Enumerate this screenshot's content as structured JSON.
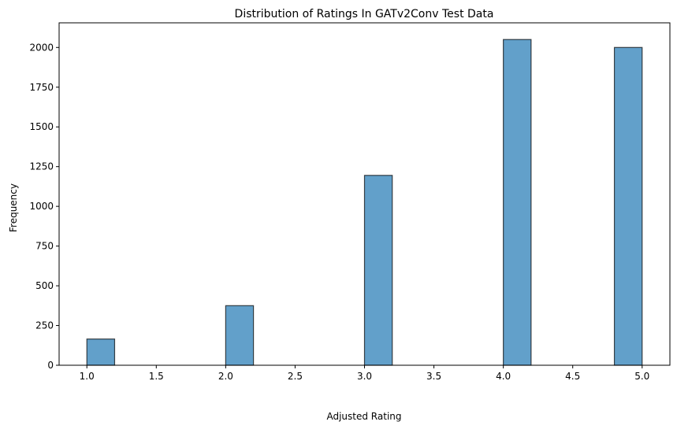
{
  "chart_data": {
    "type": "bar",
    "title": "Distribution of Ratings In GATv2Conv Test Data",
    "xlabel": "Adjusted Rating",
    "ylabel": "Frequency",
    "xlim": [
      0.8,
      5.2
    ],
    "ylim": [
      0,
      2155
    ],
    "bin_width": 0.2,
    "bins": [
      {
        "start": 1.0,
        "end": 1.2,
        "value": 165
      },
      {
        "start": 2.0,
        "end": 2.2,
        "value": 375
      },
      {
        "start": 3.0,
        "end": 3.2,
        "value": 1195
      },
      {
        "start": 4.0,
        "end": 4.2,
        "value": 2050
      },
      {
        "start": 4.8,
        "end": 5.0,
        "value": 2000
      }
    ],
    "xticks": [
      1.0,
      1.5,
      2.0,
      2.5,
      3.0,
      3.5,
      4.0,
      4.5,
      5.0
    ],
    "xtick_labels": [
      "1.0",
      "1.5",
      "2.0",
      "2.5",
      "3.0",
      "3.5",
      "4.0",
      "4.5",
      "5.0"
    ],
    "yticks": [
      0,
      250,
      500,
      750,
      1000,
      1250,
      1500,
      1750,
      2000
    ],
    "ytick_labels": [
      "0",
      "250",
      "500",
      "750",
      "1000",
      "1250",
      "1500",
      "1750",
      "2000"
    ],
    "grid": false,
    "colors": {
      "bar_fill": "#1f77b4",
      "bar_edge": "#000000"
    }
  }
}
